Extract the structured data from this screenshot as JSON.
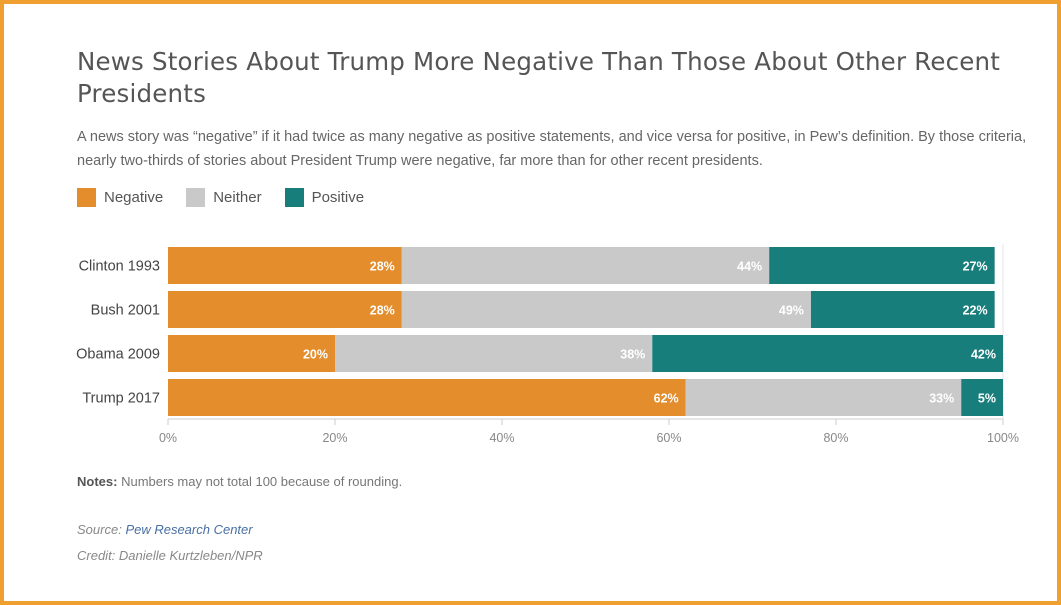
{
  "title": "News Stories About Trump More Negative Than Those About Other Recent Presidents",
  "subtitle": "A news story was “negative” if it had twice as many negative as positive statements, and vice versa for positive, in Pew’s definition. By those criteria, nearly two-thirds of stories about President Trump were negative, far more than for other recent presidents.",
  "legend": [
    {
      "label": "Negative",
      "color": "#e38d2c"
    },
    {
      "label": "Neither",
      "color": "#c9c9c9"
    },
    {
      "label": "Positive",
      "color": "#177e7c"
    }
  ],
  "chart_data": {
    "type": "bar",
    "orientation": "horizontal",
    "stacked": true,
    "categories": [
      "Clinton 1993",
      "Bush 2001",
      "Obama 2009",
      "Trump 2017"
    ],
    "series": [
      {
        "name": "Negative",
        "color": "#e38d2c",
        "values": [
          28,
          28,
          20,
          62
        ]
      },
      {
        "name": "Neither",
        "color": "#c9c9c9",
        "values": [
          44,
          49,
          38,
          33
        ]
      },
      {
        "name": "Positive",
        "color": "#177e7c",
        "values": [
          27,
          22,
          42,
          5
        ]
      }
    ],
    "value_suffix": "%",
    "xlim": [
      0,
      100
    ],
    "xticks": [
      0,
      20,
      40,
      60,
      80,
      100
    ],
    "xtick_labels": [
      "0%",
      "20%",
      "40%",
      "60%",
      "80%",
      "100%"
    ],
    "legend_position": "top-left",
    "grid": false
  },
  "notes": {
    "label": "Notes:",
    "text": "Numbers may not total 100 because of rounding."
  },
  "source": {
    "label": "Source:",
    "link_text": "Pew Research Center"
  },
  "credit": "Credit: Danielle Kurtzleben/NPR"
}
